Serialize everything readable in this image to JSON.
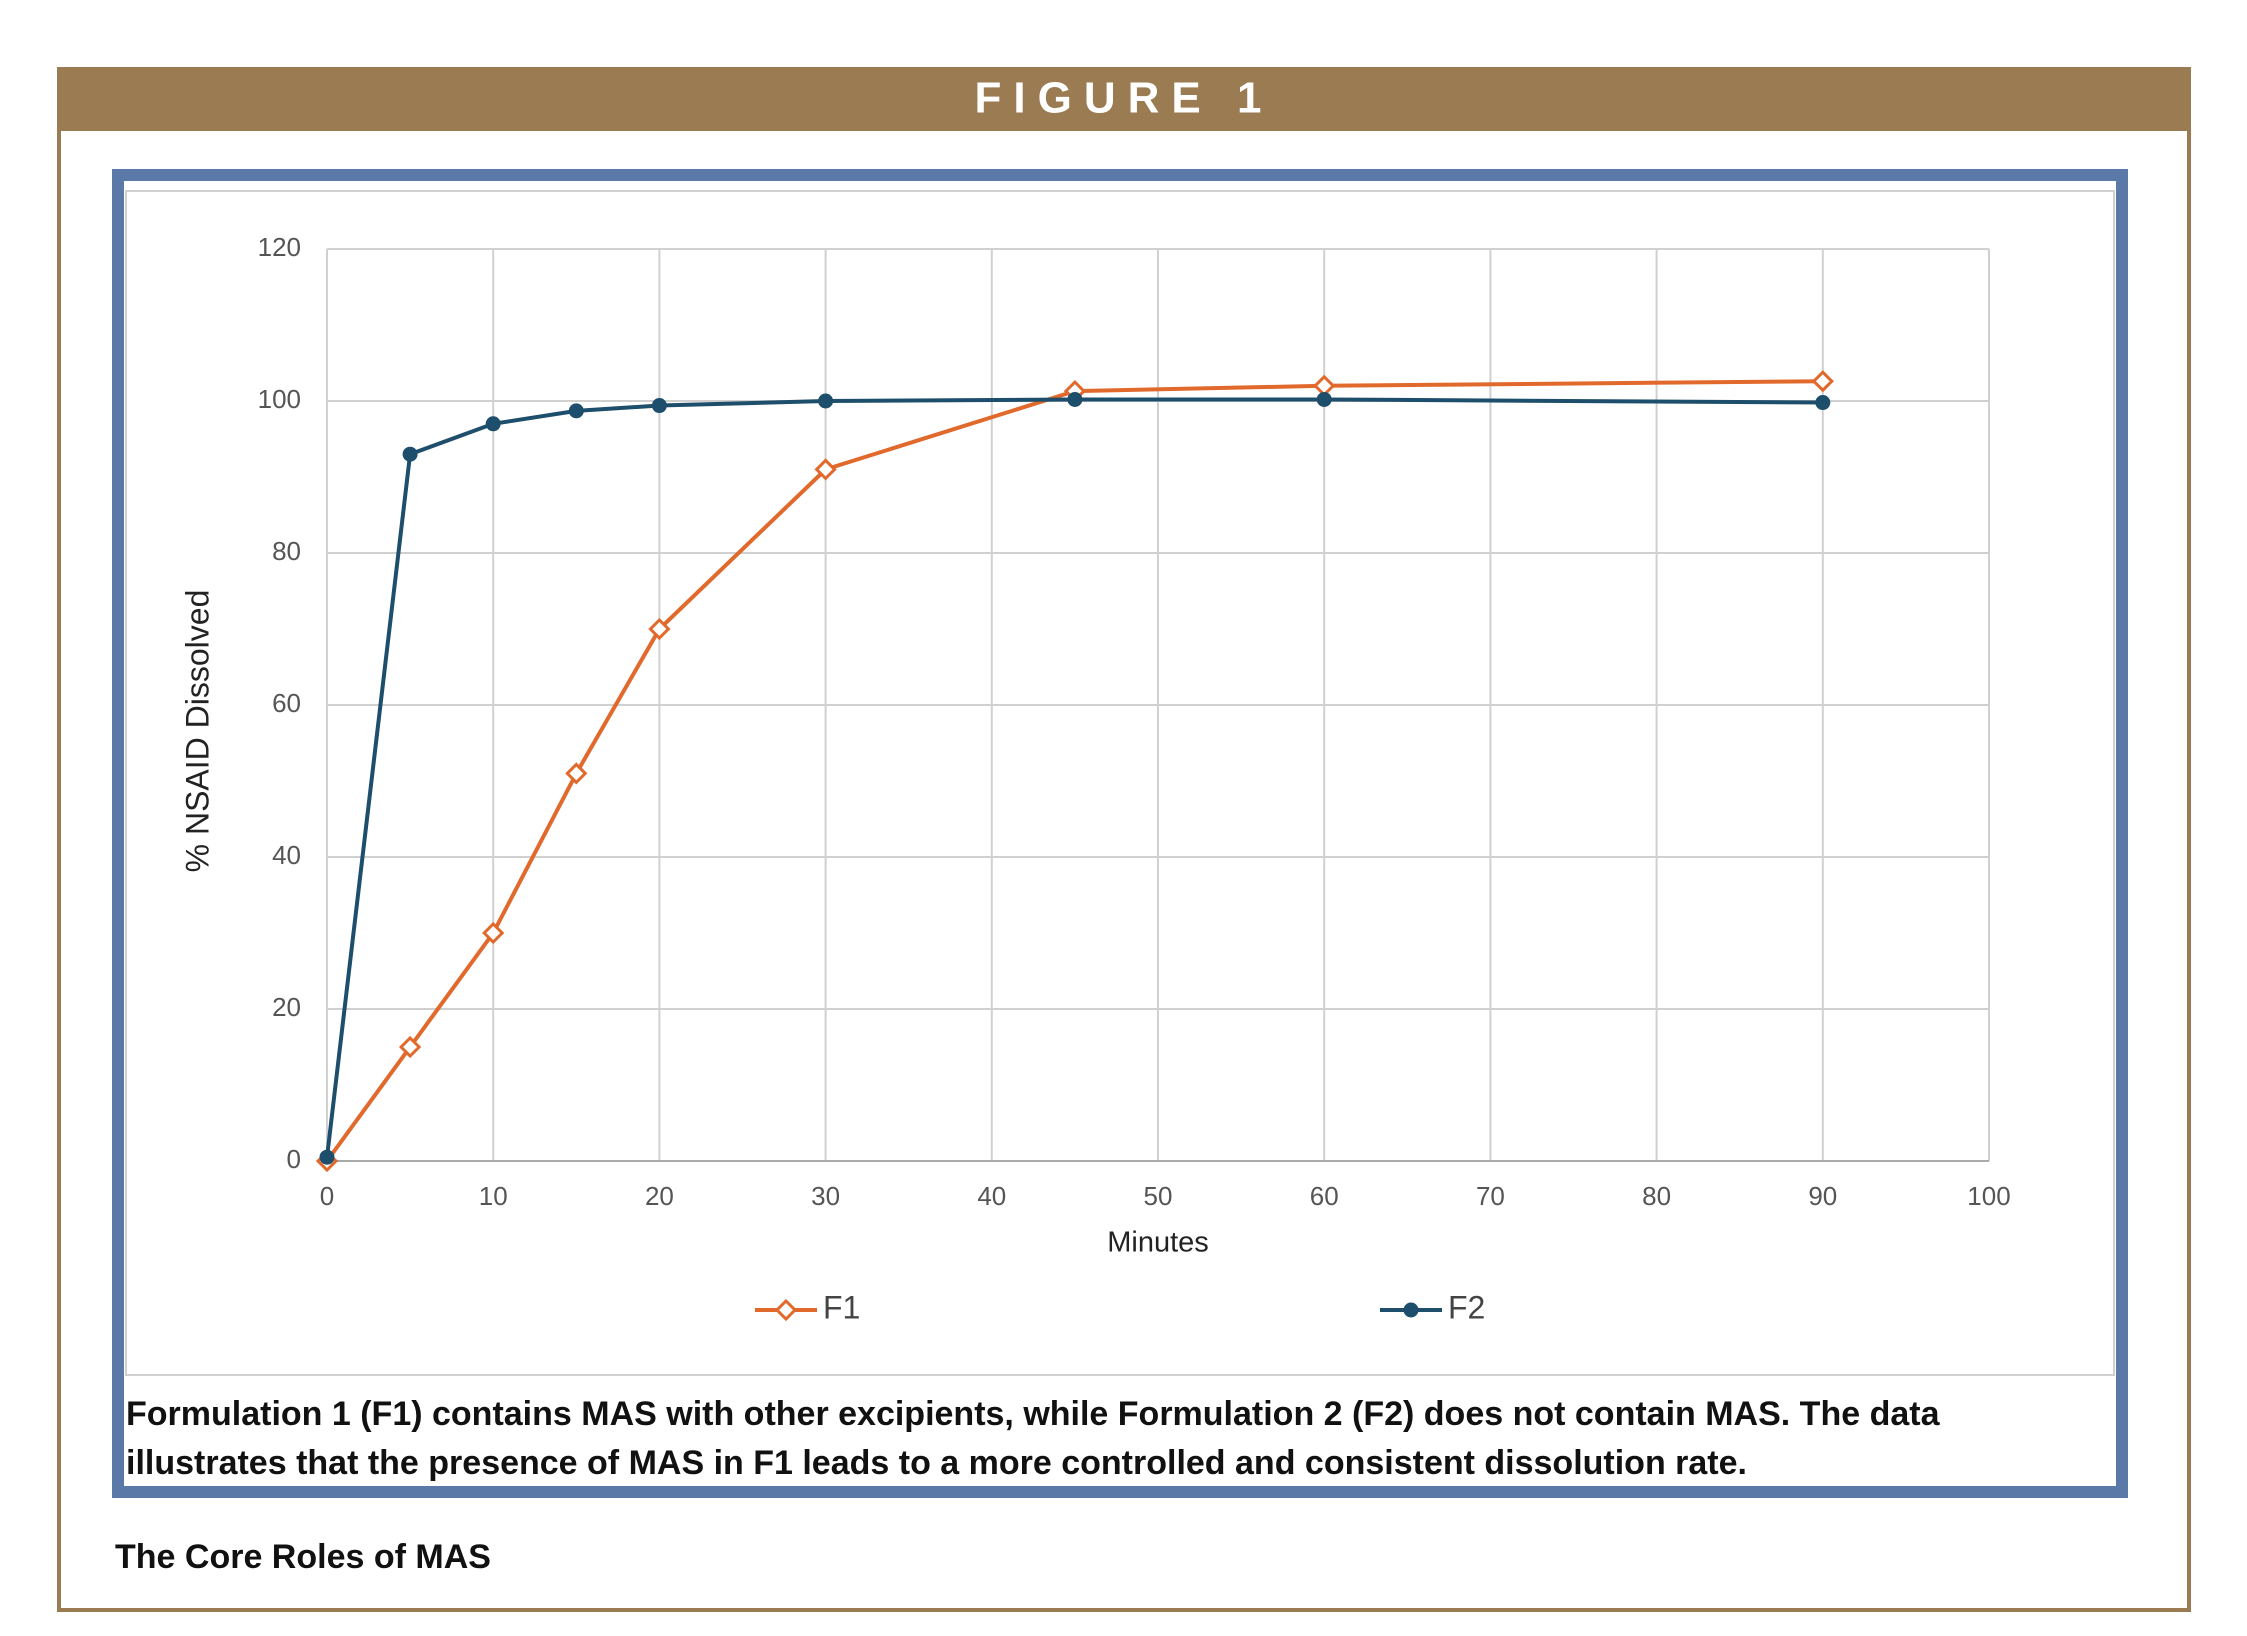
{
  "header": {
    "title": "FIGURE 1"
  },
  "chart_data": {
    "type": "line",
    "x_label": "Minutes",
    "y_label": "% NSAID Dissolved",
    "x": [
      0,
      5,
      10,
      15,
      20,
      30,
      45,
      60,
      90
    ],
    "series": [
      {
        "name": "F1",
        "color": "#e2692c",
        "marker": "diamond",
        "values": [
          0,
          15,
          30,
          51,
          70,
          91,
          101.3,
          102,
          102.6
        ]
      },
      {
        "name": "F2",
        "color": "#1d4e6b",
        "marker": "circle",
        "values": [
          0.5,
          93,
          97,
          98.7,
          99.4,
          100,
          100.2,
          100.2,
          99.8
        ]
      }
    ],
    "xlim": [
      0,
      100
    ],
    "xticks": [
      0,
      10,
      20,
      30,
      40,
      50,
      60,
      70,
      80,
      90,
      100
    ],
    "ylim": [
      0,
      120
    ],
    "yticks": [
      0,
      20,
      40,
      60,
      80,
      100,
      120
    ],
    "grid": true
  },
  "caption": [
    "Formulation 1 (F1) contains MAS with other excipients, while Formulation 2 (F2) does not contain MAS. The data",
    "illustrates that the presence of MAS in F1 leads to a more controlled and consistent dissolution rate."
  ],
  "footer": {
    "title": "The Core Roles of MAS"
  }
}
